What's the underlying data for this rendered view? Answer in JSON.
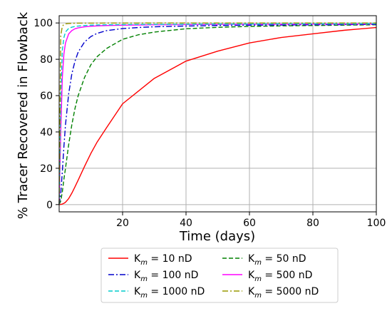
{
  "chart_data": {
    "type": "line",
    "title": "",
    "xlabel": "Time (days)",
    "ylabel": "% Tracer Recovered in Flowback",
    "xlim": [
      0,
      100
    ],
    "ylim": [
      -4,
      104
    ],
    "x_ticks": [
      20,
      40,
      60,
      80,
      100
    ],
    "y_ticks": [
      0,
      20,
      40,
      60,
      80,
      100
    ],
    "grid": true,
    "legend_position": "below",
    "legend_columns": 2,
    "x": [
      0,
      0.5,
      1,
      1.5,
      2,
      3,
      4,
      5,
      6,
      8,
      10,
      12,
      15,
      20,
      25,
      30,
      40,
      50,
      60,
      70,
      80,
      90,
      100
    ],
    "series": [
      {
        "name": "K_m = 10 nD",
        "label_prefix": "K",
        "label_sub": "m",
        "label_suffix": " = 10 nD",
        "color": "#ff0000",
        "dash": "solid",
        "values": [
          0,
          0.1,
          0.3,
          0.7,
          1.3,
          3.3,
          6.3,
          9.8,
          13.5,
          21,
          28.2,
          34.5,
          42.5,
          55.5,
          62.5,
          69.5,
          79,
          84.5,
          89,
          92,
          94,
          96,
          97.5
        ]
      },
      {
        "name": "K_m = 50 nD",
        "label_prefix": "K",
        "label_sub": "m",
        "label_suffix": " = 50 nD",
        "color": "#008000",
        "dash": "dashed",
        "values": [
          0,
          2,
          7,
          14,
          20,
          33,
          44,
          53,
          60,
          70,
          77,
          81.5,
          86,
          91,
          93.5,
          95,
          96.8,
          97.6,
          98.1,
          98.4,
          98.6,
          98.8,
          99
        ]
      },
      {
        "name": "K_m = 100 nD",
        "label_prefix": "K",
        "label_sub": "m",
        "label_suffix": " = 100 nD",
        "color": "#0000cc",
        "dash": "dashdot",
        "values": [
          0,
          6,
          18,
          32,
          44,
          61,
          72,
          79,
          84,
          89.5,
          92.5,
          94.3,
          95.8,
          96.9,
          97.5,
          97.9,
          98.3,
          98.6,
          98.8,
          98.9,
          99,
          99.1,
          99.2
        ]
      },
      {
        "name": "K_m = 500 nD",
        "label_prefix": "K",
        "label_sub": "m",
        "label_suffix": " = 500 nD",
        "color": "#ff00ff",
        "dash": "solid",
        "values": [
          0,
          40,
          70,
          83,
          89,
          94,
          95.8,
          96.8,
          97.3,
          97.9,
          98.2,
          98.4,
          98.6,
          98.8,
          98.9,
          99,
          99.1,
          99.2,
          99.3,
          99.3,
          99.4,
          99.4,
          99.5
        ]
      },
      {
        "name": "K_m = 1000 nD",
        "label_prefix": "K",
        "label_sub": "m",
        "label_suffix": " = 1000 nD",
        "color": "#00cccc",
        "dash": "dashed",
        "values": [
          0,
          60,
          85,
          92,
          95,
          97,
          97.7,
          98.1,
          98.3,
          98.6,
          98.8,
          98.9,
          99,
          99.1,
          99.2,
          99.2,
          99.3,
          99.4,
          99.4,
          99.5,
          99.5,
          99.5,
          99.6
        ]
      },
      {
        "name": "K_m = 5000 nD",
        "label_prefix": "K",
        "label_sub": "m",
        "label_suffix": " = 5000 nD",
        "color": "#999900",
        "dash": "dashdot",
        "values": [
          0,
          93,
          98.2,
          99.2,
          99.5,
          99.7,
          99.8,
          99.85,
          99.9,
          99.9,
          99.9,
          99.9,
          99.95,
          99.95,
          99.95,
          100,
          100,
          100,
          100,
          100,
          100,
          100,
          100
        ]
      }
    ],
    "legend_order": [
      0,
      1,
      2,
      3,
      4,
      5
    ]
  }
}
